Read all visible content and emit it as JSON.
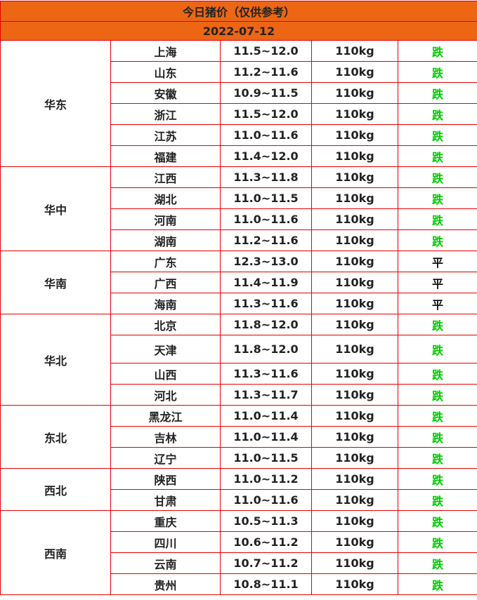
{
  "title": "今日猪价（仅供参考）",
  "date": "2022-07-12",
  "colors": {
    "header_bg": "#ec6614",
    "border": "#e60000",
    "down": "#00cc00",
    "flat": "#111111"
  },
  "groups": [
    {
      "region": "华东",
      "rows": [
        {
          "province": "上海",
          "price": "11.5~12.0",
          "weight": "110kg",
          "trend": "跌"
        },
        {
          "province": "山东",
          "price": "11.2~11.6",
          "weight": "110kg",
          "trend": "跌"
        },
        {
          "province": "安徽",
          "price": "10.9~11.5",
          "weight": "110kg",
          "trend": "跌"
        },
        {
          "province": "浙江",
          "price": "11.5~12.0",
          "weight": "110kg",
          "trend": "跌"
        },
        {
          "province": "江苏",
          "price": "11.0~11.6",
          "weight": "110kg",
          "trend": "跌"
        },
        {
          "province": "福建",
          "price": "11.4~12.0",
          "weight": "110kg",
          "trend": "跌"
        }
      ]
    },
    {
      "region": "华中",
      "rows": [
        {
          "province": "江西",
          "price": "11.3~11.8",
          "weight": "110kg",
          "trend": "跌"
        },
        {
          "province": "湖北",
          "price": "11.0~11.5",
          "weight": "110kg",
          "trend": "跌"
        },
        {
          "province": "河南",
          "price": "11.0~11.6",
          "weight": "110kg",
          "trend": "跌"
        },
        {
          "province": "湖南",
          "price": "11.2~11.6",
          "weight": "110kg",
          "trend": "跌"
        }
      ]
    },
    {
      "region": "华南",
      "rows": [
        {
          "province": "广东",
          "price": "12.3~13.0",
          "weight": "110kg",
          "trend": "平"
        },
        {
          "province": "广西",
          "price": "11.4~11.9",
          "weight": "110kg",
          "trend": "平"
        },
        {
          "province": "海南",
          "price": "11.3~11.6",
          "weight": "110kg",
          "trend": "平"
        }
      ]
    },
    {
      "region": "华北",
      "rows": [
        {
          "province": "北京",
          "price": "11.8~12.0",
          "weight": "110kg",
          "trend": "跌"
        },
        {
          "province": "天津",
          "price": "11.8~12.0",
          "weight": "110kg",
          "trend": "跌",
          "tall": true
        },
        {
          "province": "山西",
          "price": "11.3~11.6",
          "weight": "110kg",
          "trend": "跌"
        },
        {
          "province": "河北",
          "price": "11.3~11.7",
          "weight": "110kg",
          "trend": "跌"
        }
      ]
    },
    {
      "region": "东北",
      "rows": [
        {
          "province": "黑龙江",
          "price": "11.0~11.4",
          "weight": "110kg",
          "trend": "跌"
        },
        {
          "province": "吉林",
          "price": "11.0~11.4",
          "weight": "110kg",
          "trend": "跌"
        },
        {
          "province": "辽宁",
          "price": "11.0~11.5",
          "weight": "110kg",
          "trend": "跌"
        }
      ]
    },
    {
      "region": "西北",
      "rows": [
        {
          "province": "陕西",
          "price": "11.0~11.2",
          "weight": "110kg",
          "trend": "跌"
        },
        {
          "province": "甘肃",
          "price": "11.0~11.6",
          "weight": "110kg",
          "trend": "跌"
        }
      ]
    },
    {
      "region": "西南",
      "rows": [
        {
          "province": "重庆",
          "price": "10.5~11.3",
          "weight": "110kg",
          "trend": "跌"
        },
        {
          "province": "四川",
          "price": "10.6~11.2",
          "weight": "110kg",
          "trend": "跌"
        },
        {
          "province": "云南",
          "price": "10.7~11.2",
          "weight": "110kg",
          "trend": "跌"
        },
        {
          "province": "贵州",
          "price": "10.8~11.1",
          "weight": "110kg",
          "trend": "跌"
        }
      ]
    }
  ]
}
